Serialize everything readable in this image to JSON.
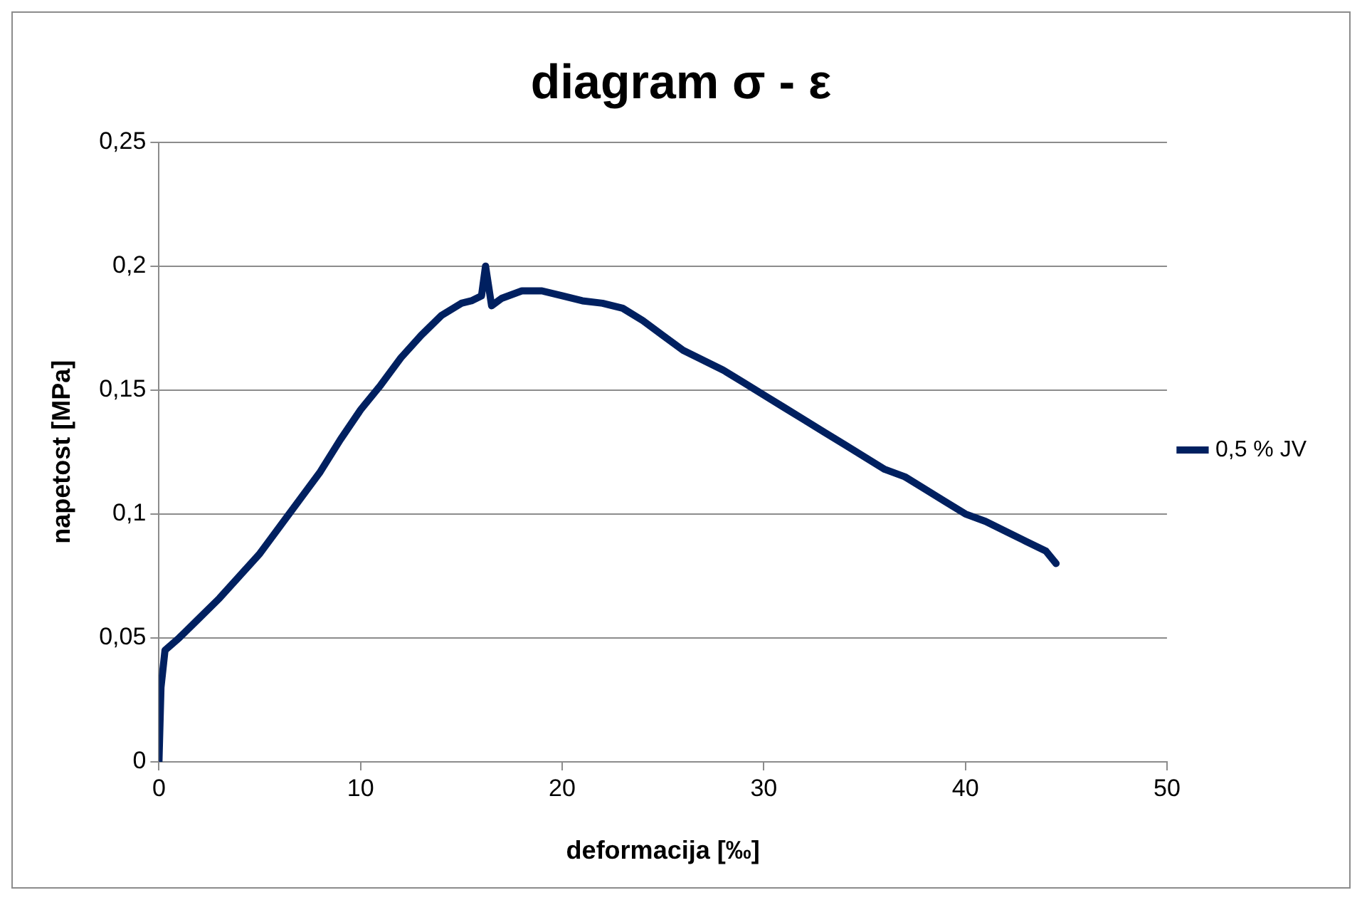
{
  "chart_data": {
    "type": "line",
    "title": "diagram σ - ε",
    "xlabel": "deformacija [‰]",
    "ylabel": "napetost [MPa]",
    "xlim": [
      0,
      50
    ],
    "xticks": [
      0,
      10,
      20,
      30,
      40,
      50
    ],
    "ylim": [
      0,
      0.25
    ],
    "yticks": [
      0,
      {
        "value": 0.05,
        "label": "0,05"
      },
      {
        "value": 0.1,
        "label": "0,1"
      },
      {
        "value": 0.15,
        "label": "0,15"
      },
      {
        "value": 0.2,
        "label": "0,2"
      },
      {
        "value": 0.25,
        "label": "0,25"
      }
    ],
    "grid": "y",
    "legend": "right",
    "marker": "none",
    "line_style": "solid",
    "series": [
      {
        "name": "0,5 % JV",
        "color": "#002060",
        "x": [
          0,
          0.1,
          0.3,
          1,
          2,
          3,
          4,
          5,
          6,
          7,
          8,
          9,
          10,
          11,
          12,
          13,
          14,
          15,
          15.5,
          16,
          16.2,
          16.5,
          17,
          18,
          19,
          20,
          21,
          22,
          23,
          24,
          25,
          26,
          27,
          28,
          29,
          30,
          31,
          32,
          33,
          34,
          35,
          36,
          37,
          38,
          39,
          40,
          41,
          42,
          43,
          44,
          44.5
        ],
        "values": [
          0,
          0.03,
          0.045,
          0.05,
          0.058,
          0.066,
          0.075,
          0.084,
          0.095,
          0.106,
          0.117,
          0.13,
          0.142,
          0.152,
          0.163,
          0.172,
          0.18,
          0.185,
          0.186,
          0.188,
          0.2,
          0.184,
          0.187,
          0.19,
          0.19,
          0.188,
          0.186,
          0.185,
          0.183,
          0.178,
          0.172,
          0.166,
          0.162,
          0.158,
          0.153,
          0.148,
          0.143,
          0.138,
          0.133,
          0.128,
          0.123,
          0.118,
          0.115,
          0.11,
          0.105,
          0.1,
          0.097,
          0.093,
          0.089,
          0.085,
          0.08
        ]
      }
    ]
  }
}
